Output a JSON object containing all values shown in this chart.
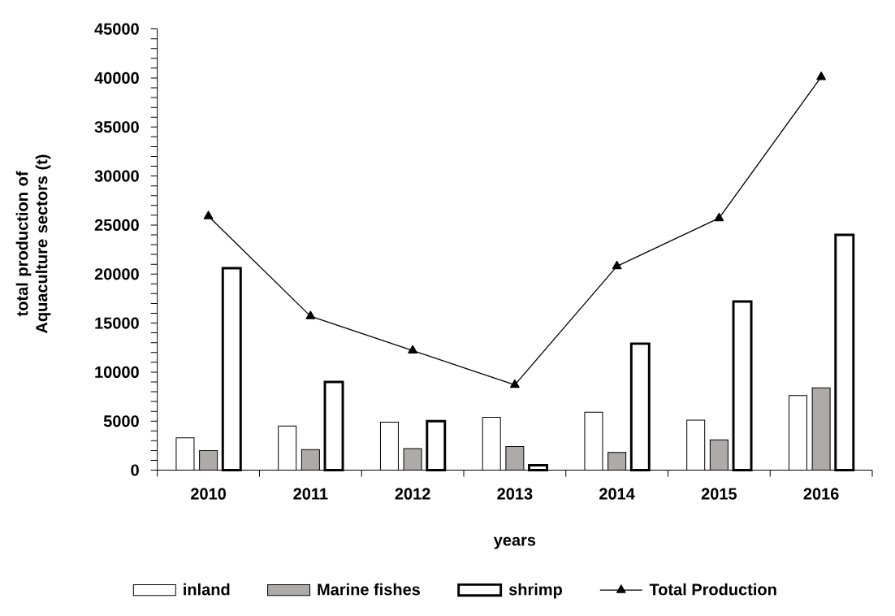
{
  "chart_data": {
    "type": "bar",
    "xlabel": "years",
    "ylabel": "total production of Aquaculture sectors (t)",
    "categories": [
      "2010",
      "2011",
      "2012",
      "2013",
      "2014",
      "2015",
      "2016"
    ],
    "series": [
      {
        "name": "inland",
        "color": "#ffffff",
        "values": [
          3300,
          4500,
          4900,
          5400,
          5900,
          5100,
          7600
        ]
      },
      {
        "name": "Marine fishes",
        "color": "#aeaaaa",
        "values": [
          2000,
          2100,
          2200,
          2400,
          1800,
          3100,
          8400
        ]
      },
      {
        "name": "shrimp",
        "color": "#ffffff",
        "values": [
          20600,
          9000,
          5000,
          500,
          12900,
          17200,
          24000
        ]
      },
      {
        "name": "Total Production",
        "type": "line",
        "color": "#000000",
        "marker": "triangle",
        "line_style": "solid",
        "values": [
          25900,
          15700,
          12200,
          8700,
          20800,
          25700,
          40100
        ]
      }
    ],
    "ylim": [
      0,
      45000
    ],
    "yticks": [
      0,
      5000,
      10000,
      15000,
      20000,
      25000,
      30000,
      35000,
      40000,
      45000
    ],
    "legend": "bottom"
  }
}
